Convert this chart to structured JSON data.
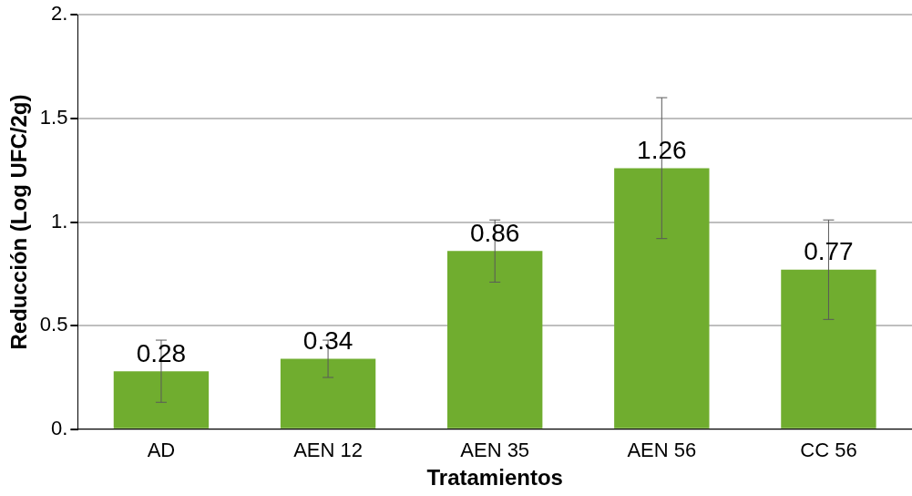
{
  "chart_data": {
    "type": "bar",
    "xlabel": "Tratamientos",
    "ylabel": "Reducción (Log UFC/2g)",
    "categories": [
      "AD",
      "AEN 12",
      "AEN 35",
      "AEN 56",
      "CC 56"
    ],
    "values": [
      0.28,
      0.34,
      0.86,
      1.26,
      0.77
    ],
    "value_labels": [
      "0.28",
      "0.34",
      "0.86",
      "1.26",
      "0.77"
    ],
    "errors": [
      0.15,
      0.09,
      0.15,
      0.34,
      0.24
    ],
    "color": "#70ad2f",
    "ylim": [
      0,
      2
    ],
    "yticks": [
      {
        "value": 0,
        "label": "0."
      },
      {
        "value": 0.5,
        "label": "0.5"
      },
      {
        "value": 1,
        "label": "1."
      },
      {
        "value": 1.5,
        "label": "1.5"
      },
      {
        "value": 2,
        "label": "2."
      }
    ],
    "grid": "y",
    "legend": false
  }
}
